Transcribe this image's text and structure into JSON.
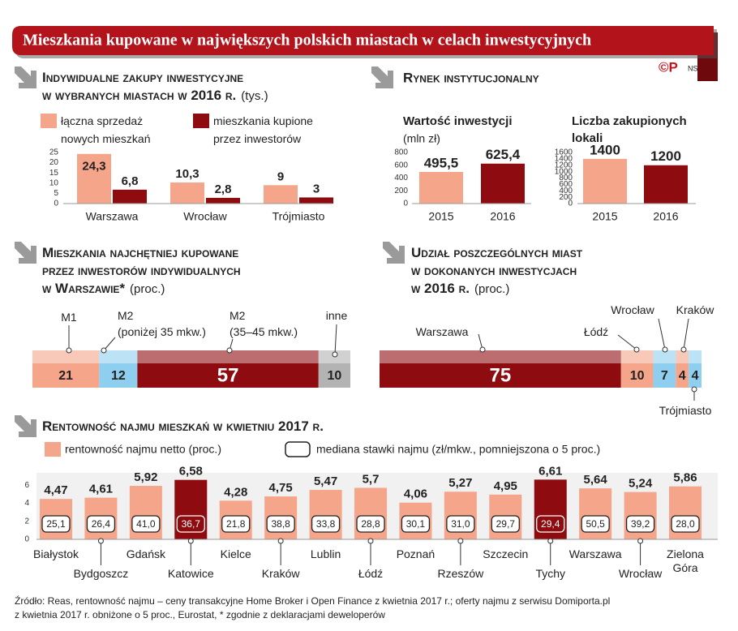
{
  "title": "Mieszkania kupowane w największych polskich miastach w celach inwestycyjnych",
  "logo": "©P",
  "author": "NS",
  "chart_data": [
    {
      "type": "bar",
      "title": [
        "Indywidualne zakupy inwestycyjne",
        "w wybranych miastach w 2016 r."
      ],
      "unit": "(tys.)",
      "categories": [
        "Warszawa",
        "Wrocław",
        "Trójmiasto"
      ],
      "series": [
        {
          "name": "łączna sprzedaż nowych mieszkań",
          "color": "#f4a58a",
          "values": [
            24.3,
            10.3,
            9
          ],
          "value_labels": [
            "24,3",
            "10,3",
            "9"
          ]
        },
        {
          "name": "mieszkania kupione przez inwestorów",
          "color": "#8e0b10",
          "values": [
            6.8,
            2.8,
            3
          ],
          "value_labels": [
            "6,8",
            "2,8",
            "3"
          ]
        }
      ],
      "ylim": [
        0,
        25
      ],
      "yticks": [
        0,
        5,
        10,
        15,
        20,
        25
      ]
    },
    {
      "type": "bar",
      "section": "Rynek instytucjonalny",
      "title": "Wartość inwestycji",
      "unit": "(mln zł)",
      "categories": [
        "2015",
        "2016"
      ],
      "values": [
        495.5,
        625.4
      ],
      "value_labels": [
        "495,5",
        "625,4"
      ],
      "colors": [
        "#f4a58a",
        "#8e0b10"
      ],
      "ylim": [
        0,
        800
      ],
      "yticks": [
        0,
        200,
        400,
        600,
        800
      ]
    },
    {
      "type": "bar",
      "title": "Liczba zakupionych lokali",
      "categories": [
        "2015",
        "2016"
      ],
      "values": [
        1400,
        1200
      ],
      "colors": [
        "#f4a58a",
        "#8e0b10"
      ],
      "ylim": [
        0,
        1600
      ],
      "yticks": [
        0,
        200,
        400,
        600,
        800,
        1000,
        1200,
        1400,
        1600
      ]
    },
    {
      "type": "stacked-bar",
      "title": [
        "Mieszkania najchętniej kupowane",
        "przez inwestorów indywidualnych",
        "w Warszawie*"
      ],
      "unit": "(proc.)",
      "categories": [
        "M1",
        "M2 (poniżej 35 mkw.)",
        "M2 (35–45 mkw.)",
        "inne"
      ],
      "values": [
        21,
        12,
        57,
        10
      ],
      "colors": [
        "#f4a58a",
        "#8ecfef",
        "#8e0b10",
        "#b3b3b3"
      ]
    },
    {
      "type": "stacked-bar",
      "title": [
        "Udział poszczególnych miast",
        "w dokonanych inwestycjach",
        "w 2016 r."
      ],
      "unit": "(proc.)",
      "categories": [
        "Warszawa",
        "Łódź",
        "Wrocław",
        "Kraków",
        "Trójmiasto"
      ],
      "values": [
        75,
        10,
        7,
        4,
        4
      ],
      "colors": [
        "#8e0b10",
        "#f4a58a",
        "#8ecfef",
        "#f4a58a",
        "#8ecfef"
      ]
    },
    {
      "type": "bar",
      "title": "Rentowność najmu mieszkań w kwietniu 2017 r.",
      "categories": [
        "Białystok",
        "Bydgoszcz",
        "Gdańsk",
        "Katowice",
        "Kielce",
        "Kraków",
        "Lublin",
        "Łódź",
        "Poznań",
        "Rzeszów",
        "Szczecin",
        "Tychy",
        "Warszawa",
        "Wrocław",
        "Zielona Góra"
      ],
      "series": [
        {
          "name": "rentowność najmu netto (proc.)",
          "color": "#f4a58a",
          "colors": [
            "#f4a58a",
            "#f4a58a",
            "#f4a58a",
            "#8e0b10",
            "#f4a58a",
            "#f4a58a",
            "#f4a58a",
            "#f4a58a",
            "#f4a58a",
            "#f4a58a",
            "#f4a58a",
            "#8e0b10",
            "#f4a58a",
            "#f4a58a",
            "#f4a58a"
          ],
          "values": [
            4.47,
            4.61,
            5.92,
            6.58,
            4.28,
            4.75,
            5.47,
            5.7,
            4.06,
            5.27,
            4.95,
            6.61,
            5.64,
            5.24,
            5.86
          ],
          "value_labels": [
            "4,47",
            "4,61",
            "5,92",
            "6,58",
            "4,28",
            "4,75",
            "5,47",
            "5,7",
            "4,06",
            "5,27",
            "4,95",
            "6,61",
            "5,64",
            "5,24",
            "5,86"
          ]
        },
        {
          "name": "mediana stawki najmu (zł/mkw., pomniejszona o 5 proc.)",
          "values": [
            25.1,
            26.4,
            41.0,
            36.7,
            21.8,
            38.8,
            33.8,
            28.8,
            30.1,
            31.0,
            29.7,
            29.4,
            50.5,
            39.2,
            28.0
          ],
          "value_labels": [
            "25,1",
            "26,4",
            "41,0",
            "36,7",
            "21,8",
            "38,8",
            "33,8",
            "28,8",
            "30,1",
            "31,0",
            "29,7",
            "29,4",
            "50,5",
            "39,2",
            "28,0"
          ]
        }
      ],
      "ylim": [
        0,
        7
      ],
      "yticks": [
        0,
        2,
        4,
        6
      ]
    }
  ],
  "source": [
    "Źródło: Reas, rentowność najmu – ceny transakcyjne Home Broker i Open Finance z kwietnia 2017 r.; oferty najmu z serwisu Domiporta.pl",
    "z kwietnia 2017 r. obniżone o 5 proc., Eurostat, * zgodnie z deklaracjami deweloperów"
  ]
}
